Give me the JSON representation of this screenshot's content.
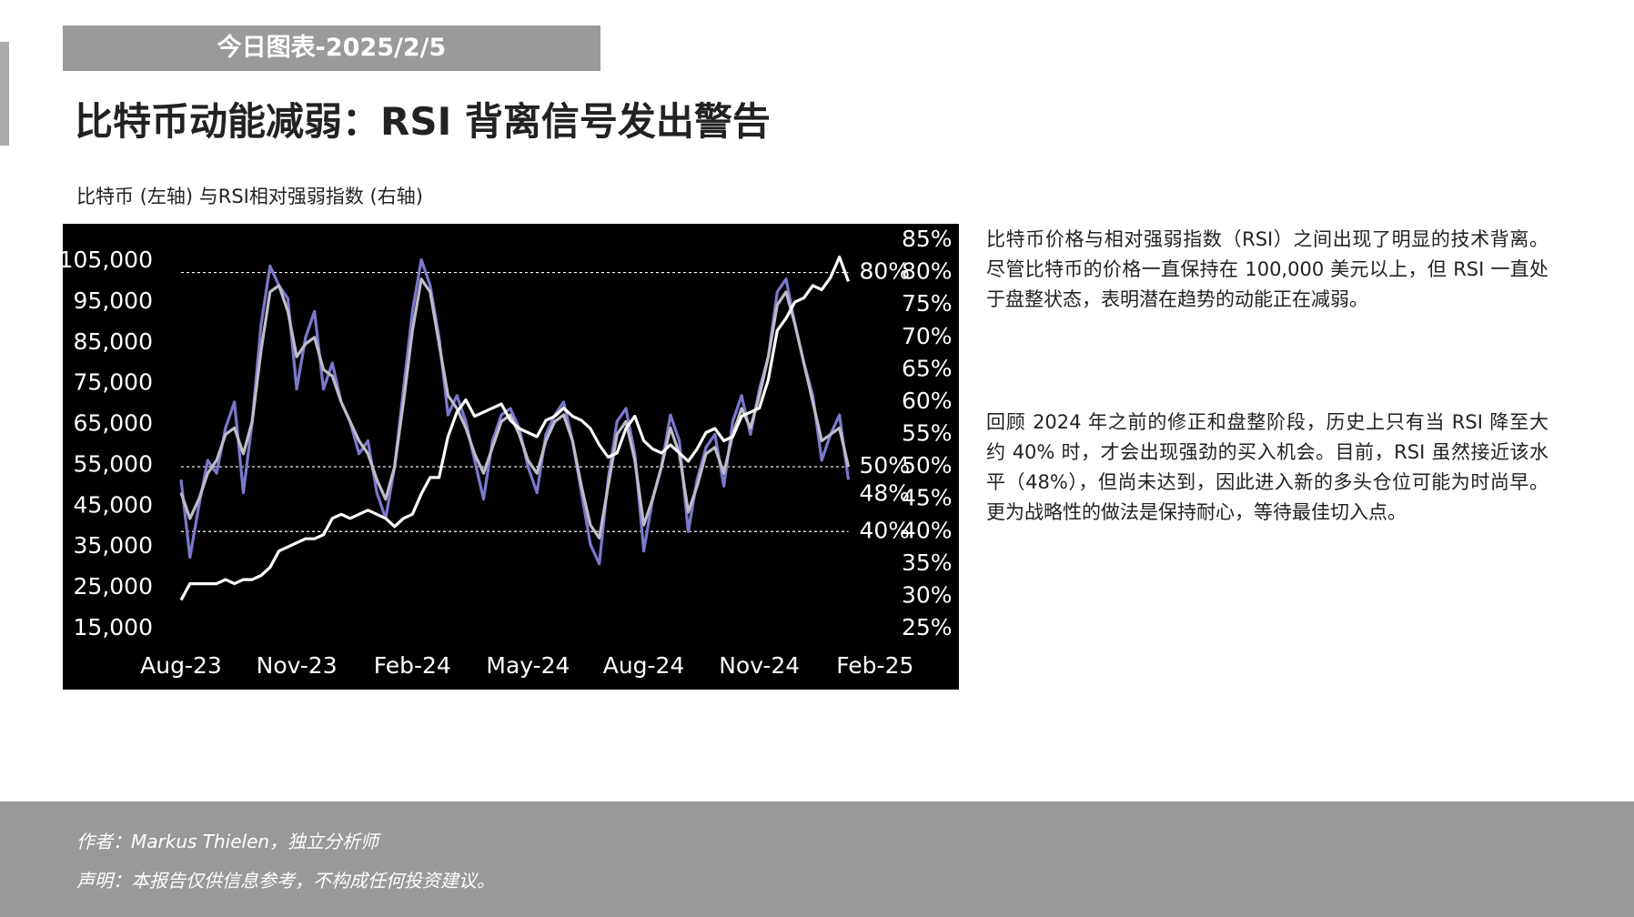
{
  "header": {
    "tag": "今日图表-2025/2/5",
    "title": "比特币动能减弱：RSI 背离信号发出警告"
  },
  "chart_data": {
    "type": "line",
    "title": "比特币 (左轴) 与RSI相对强弱指数 (右轴)",
    "categories": [
      "Aug-23",
      null,
      null,
      null,
      null,
      null,
      null,
      null,
      null,
      null,
      null,
      null,
      null,
      "Nov-23",
      null,
      null,
      null,
      null,
      null,
      null,
      null,
      null,
      null,
      null,
      null,
      null,
      "Feb-24",
      null,
      null,
      null,
      null,
      null,
      null,
      null,
      null,
      null,
      null,
      null,
      null,
      "May-24",
      null,
      null,
      null,
      null,
      null,
      null,
      null,
      null,
      null,
      null,
      null,
      null,
      "Aug-24",
      null,
      null,
      null,
      null,
      null,
      null,
      null,
      null,
      null,
      null,
      null,
      null,
      "Nov-24",
      null,
      null,
      null,
      null,
      null,
      null,
      null,
      null,
      null,
      null,
      null,
      null,
      "Feb-25"
    ],
    "series": [
      {
        "color": "#7b78cc",
        "axis": "y2",
        "values": [
          48,
          36,
          44,
          51,
          49,
          56,
          60,
          46,
          57,
          72,
          81,
          78,
          76,
          62,
          70,
          74,
          62,
          66,
          60,
          57,
          52,
          54,
          46,
          42,
          50,
          62,
          74,
          82,
          78,
          70,
          58,
          61,
          57,
          51,
          45,
          54,
          58,
          59,
          56,
          50,
          46,
          55,
          58,
          60,
          54,
          46,
          38,
          35,
          48,
          57,
          59,
          52,
          37,
          45,
          50,
          58,
          54,
          40,
          48,
          53,
          55,
          47,
          57,
          61,
          55,
          62,
          67,
          77,
          79,
          72,
          66,
          61,
          51,
          55,
          58,
          48,
          null,
          null,
          null
        ]
      },
      {
        "color": "#bdbdc8",
        "axis": "y2",
        "values": [
          46,
          42,
          45,
          49,
          51,
          55,
          56,
          52,
          57,
          68,
          77,
          78,
          74,
          67,
          69,
          70,
          65,
          64,
          60,
          57,
          54,
          52,
          48,
          45,
          50,
          60,
          71,
          79,
          77,
          69,
          61,
          59,
          56,
          52,
          49,
          53,
          57,
          58,
          55,
          51,
          49,
          54,
          57,
          58,
          54,
          47,
          41,
          39,
          47,
          55,
          57,
          51,
          41,
          45,
          50,
          56,
          52,
          43,
          47,
          52,
          53,
          49,
          55,
          59,
          56,
          61,
          67,
          75,
          77,
          72,
          66,
          60,
          54,
          55,
          56,
          50,
          null,
          null,
          null
        ]
      },
      {
        "color": "#ffffff",
        "values": [
          22000,
          26000,
          26000,
          26000,
          26000,
          27000,
          26000,
          27000,
          27000,
          28000,
          30000,
          34000,
          35000,
          36000,
          37000,
          37000,
          38000,
          42000,
          43000,
          42000,
          43000,
          44000,
          43000,
          42000,
          40000,
          42000,
          43000,
          48000,
          52000,
          52000,
          62000,
          68000,
          71000,
          67000,
          68000,
          69000,
          70000,
          66000,
          64000,
          63000,
          62000,
          66000,
          67000,
          69000,
          67000,
          66000,
          64000,
          60000,
          57000,
          58000,
          64000,
          67000,
          61000,
          59000,
          58000,
          60000,
          58000,
          56000,
          59000,
          63000,
          64000,
          61000,
          62000,
          67000,
          68000,
          69000,
          76000,
          88000,
          91000,
          95000,
          96000,
          99000,
          98000,
          101000,
          106000,
          100000,
          null,
          null,
          null
        ]
      }
    ],
    "ylim": [
      15000,
      105000
    ],
    "yticks": [
      {
        "value": 15000,
        "label": "15,000"
      },
      {
        "value": 25000,
        "label": "25,000"
      },
      {
        "value": 35000,
        "label": "35,000"
      },
      {
        "value": 45000,
        "label": "45,000"
      },
      {
        "value": 55000,
        "label": "55,000"
      },
      {
        "value": 65000,
        "label": "65,000"
      },
      {
        "value": 75000,
        "label": "75,000"
      },
      {
        "value": 85000,
        "label": "85,000"
      },
      {
        "value": 95000,
        "label": "95,000"
      },
      {
        "value": 105000,
        "label": "105,000"
      }
    ],
    "y2lim": [
      25,
      85
    ],
    "y2ticks": [
      {
        "value": 25,
        "label": "25%"
      },
      {
        "value": 30,
        "label": "30%"
      },
      {
        "value": 35,
        "label": "35%"
      },
      {
        "value": 40,
        "label": "40%"
      },
      {
        "value": 45,
        "label": "45%"
      },
      {
        "value": 50,
        "label": "50%"
      },
      {
        "value": 55,
        "label": "55%"
      },
      {
        "value": 60,
        "label": "60%"
      },
      {
        "value": 65,
        "label": "65%"
      },
      {
        "value": 70,
        "label": "70%"
      },
      {
        "value": 75,
        "label": "75%"
      },
      {
        "value": 80,
        "label": "80%"
      },
      {
        "value": 85,
        "label": "85%"
      }
    ],
    "reference_lines": [
      {
        "value": 80,
        "label": "80%"
      },
      {
        "value": 50,
        "label": "50%"
      },
      {
        "value": 40,
        "label": "40%"
      }
    ],
    "annotations": [
      {
        "value": 48,
        "text": "48%"
      }
    ]
  },
  "commentary": [
    "比特币价格与相对强弱指数（RSI）之间出现了明显的技术背离。尽管比特币的价格一直保持在 100,000 美元以上，但 RSI 一直处于盘整状态，表明潜在趋势的动能正在减弱。",
    "回顾 2024 年之前的修正和盘整阶段，历史上只有当 RSI 降至大约 40% 时，才会出现强劲的买入机会。目前，RSI 虽然接近该水平（48%），但尚未达到，因此进入新的多头仓位可能为时尚早。更为战略性的做法是保持耐心，等待最佳切入点。"
  ],
  "footer": [
    "作者：Markus Thielen，独立分析师",
    "声明：本报告仅供信息参考，不构成任何投资建议。"
  ]
}
